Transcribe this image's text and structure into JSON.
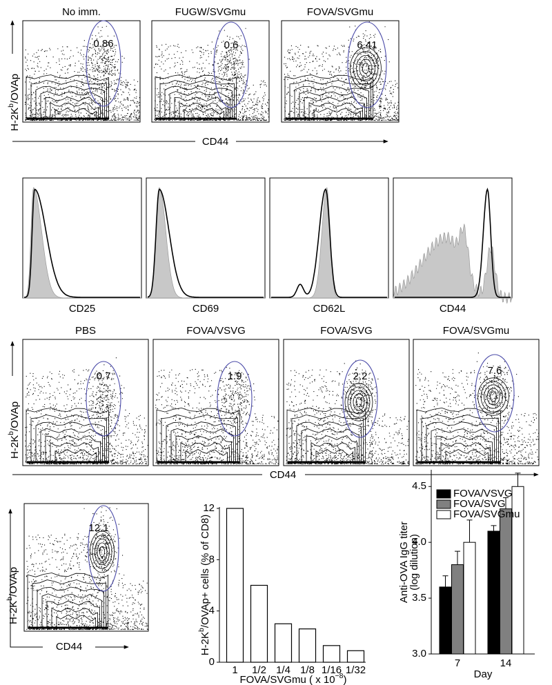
{
  "row1": {
    "y_label": {
      "main": "H-2K",
      "sup": "b",
      "rest": "/OVAp"
    },
    "x_label": "CD44",
    "plots": [
      {
        "title": "No imm.",
        "gate": 0.86
      },
      {
        "title": "FUGW/SVGmu",
        "gate": 0.6
      },
      {
        "title": "FOVA/SVGmu",
        "gate": 6.41
      }
    ]
  },
  "row2": {
    "histograms": [
      {
        "label": "CD25"
      },
      {
        "label": "CD69"
      },
      {
        "label": "CD62L"
      },
      {
        "label": "CD44"
      }
    ]
  },
  "row3": {
    "y_label": {
      "main": "H-2K",
      "sup": "b",
      "rest": "/OVAp"
    },
    "x_label": "CD44",
    "plots": [
      {
        "title": "PBS",
        "gate": 0.7
      },
      {
        "title": "FOVA/VSVG",
        "gate": 1.9
      },
      {
        "title": "FOVA/SVG",
        "gate": 2.2
      },
      {
        "title": "FOVA/SVGmu",
        "gate": 7.6
      }
    ]
  },
  "row4": {
    "y_label": {
      "main": "H-2K",
      "sup": "b",
      "rest": "/OVAp"
    },
    "x_label": "CD44",
    "gate": 12.1
  },
  "chart_data": [
    {
      "type": "bar",
      "y_label": {
        "main": "H-2K",
        "sup": "b",
        "rest": "/OVAp+ cells (% of CD8)"
      },
      "x_label": {
        "main": "FOVA/SVGmu ( x 10",
        "sup": "−8",
        "rest": ")"
      },
      "categories": [
        "1",
        "1/2",
        "1/4",
        "1/8",
        "1/16",
        "1/32"
      ],
      "values": [
        12,
        6,
        3,
        2.6,
        1.3,
        0.9
      ],
      "color": "#ffffff",
      "ylim": [
        0,
        12
      ],
      "yticks": [
        0,
        4,
        8,
        12
      ]
    },
    {
      "type": "grouped_bar",
      "y_label": [
        "Anti-OVA IgG titer",
        "(log dilution)"
      ],
      "x_label": "Day",
      "categories": [
        "7",
        "14"
      ],
      "series": [
        {
          "name": "FOVA/VSVG",
          "color": "#000000",
          "values": [
            3.6,
            4.1
          ],
          "errors": [
            0.1,
            0.05
          ]
        },
        {
          "name": "FOVA/SVG",
          "color": "#808080",
          "values": [
            3.8,
            4.3
          ],
          "errors": [
            0.12,
            0.1
          ]
        },
        {
          "name": "FOVA/SVGmu",
          "color": "#ffffff",
          "values": [
            4.0,
            4.5
          ],
          "errors": [
            0.2,
            0.12
          ]
        }
      ],
      "ylim": [
        3.0,
        4.65
      ],
      "yticks": [
        {
          "value": 3.0,
          "label": "3.0"
        },
        3.5,
        {
          "value": 4.0,
          "label": "4.0"
        },
        4.5
      ],
      "legend": "top-left"
    }
  ]
}
